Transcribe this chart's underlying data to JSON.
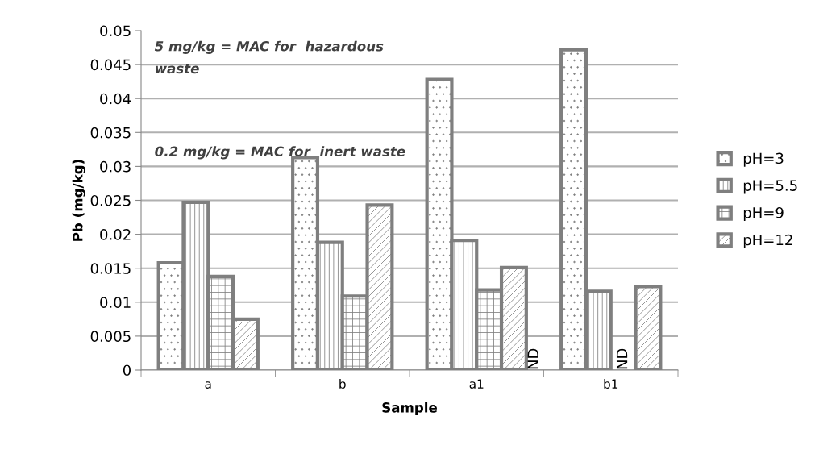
{
  "chart_data": {
    "type": "bar",
    "xlabel": "Sample",
    "ylabel": "Pb (mg/kg)",
    "categories": [
      "a",
      "b",
      "a1",
      "b1"
    ],
    "series": [
      {
        "name": "pH=3",
        "color": "#7f7f7f",
        "values": [
          0.0158,
          0.0313,
          0.0428,
          0.0472
        ]
      },
      {
        "name": "pH=5.5",
        "color": "#7f7f7f",
        "values": [
          0.0247,
          0.0188,
          0.0191,
          0.0116
        ]
      },
      {
        "name": "pH=9",
        "color": "#7f7f7f",
        "values": [
          0.0138,
          0.0109,
          0.0118,
          null
        ],
        "value_labels": [
          null,
          null,
          null,
          "ND"
        ]
      },
      {
        "name": "pH=12",
        "color": "#7f7f7f",
        "values": [
          0.0075,
          0.0243,
          0.0151,
          0.0123
        ]
      }
    ],
    "annotations": [
      "5 mg/kg = MAC for  hazardous waste",
      "0.2 mg/kg = MAC for  inert waste",
      "ND"
    ],
    "ylim": [
      0,
      0.05
    ],
    "yticks": [
      0,
      0.005,
      0.01,
      0.015,
      0.02,
      0.025,
      0.03,
      0.035,
      0.04,
      0.045,
      0.05
    ],
    "grid": "y",
    "legend": "right"
  }
}
